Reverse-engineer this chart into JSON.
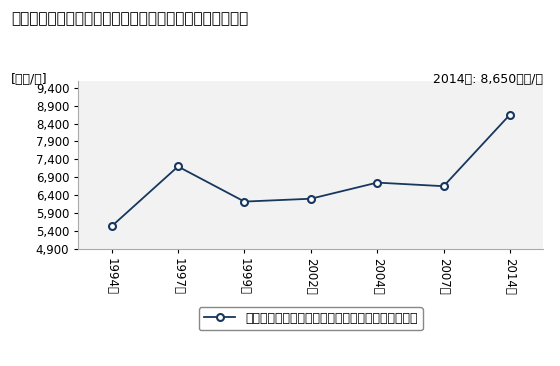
{
  "title": "その他の卸売業の従業者一人当たり年間商品販売額の推移",
  "ylabel": "[万円/人]",
  "annotation": "2014年: 8,650万円/人",
  "legend_label": "その他の卸売業の従業者一人当たり年間商品販売額",
  "x_labels": [
    "1994年",
    "1997年",
    "1999年",
    "2002年",
    "2004年",
    "2007年",
    "2014年"
  ],
  "x_values": [
    0,
    1,
    2,
    3,
    4,
    5,
    6
  ],
  "y_values": [
    5530,
    7200,
    6220,
    6300,
    6750,
    6650,
    8650
  ],
  "ylim_min": 4900,
  "ylim_max": 9600,
  "yticks": [
    4900,
    5400,
    5900,
    6400,
    6900,
    7400,
    7900,
    8400,
    8900,
    9400
  ],
  "line_color": "#17375E",
  "marker_color": "#17375E",
  "bg_color": "#FFFFFF",
  "plot_bg_color": "#F2F2F2",
  "title_fontsize": 11,
  "label_fontsize": 9,
  "tick_fontsize": 8.5,
  "annotation_fontsize": 9
}
